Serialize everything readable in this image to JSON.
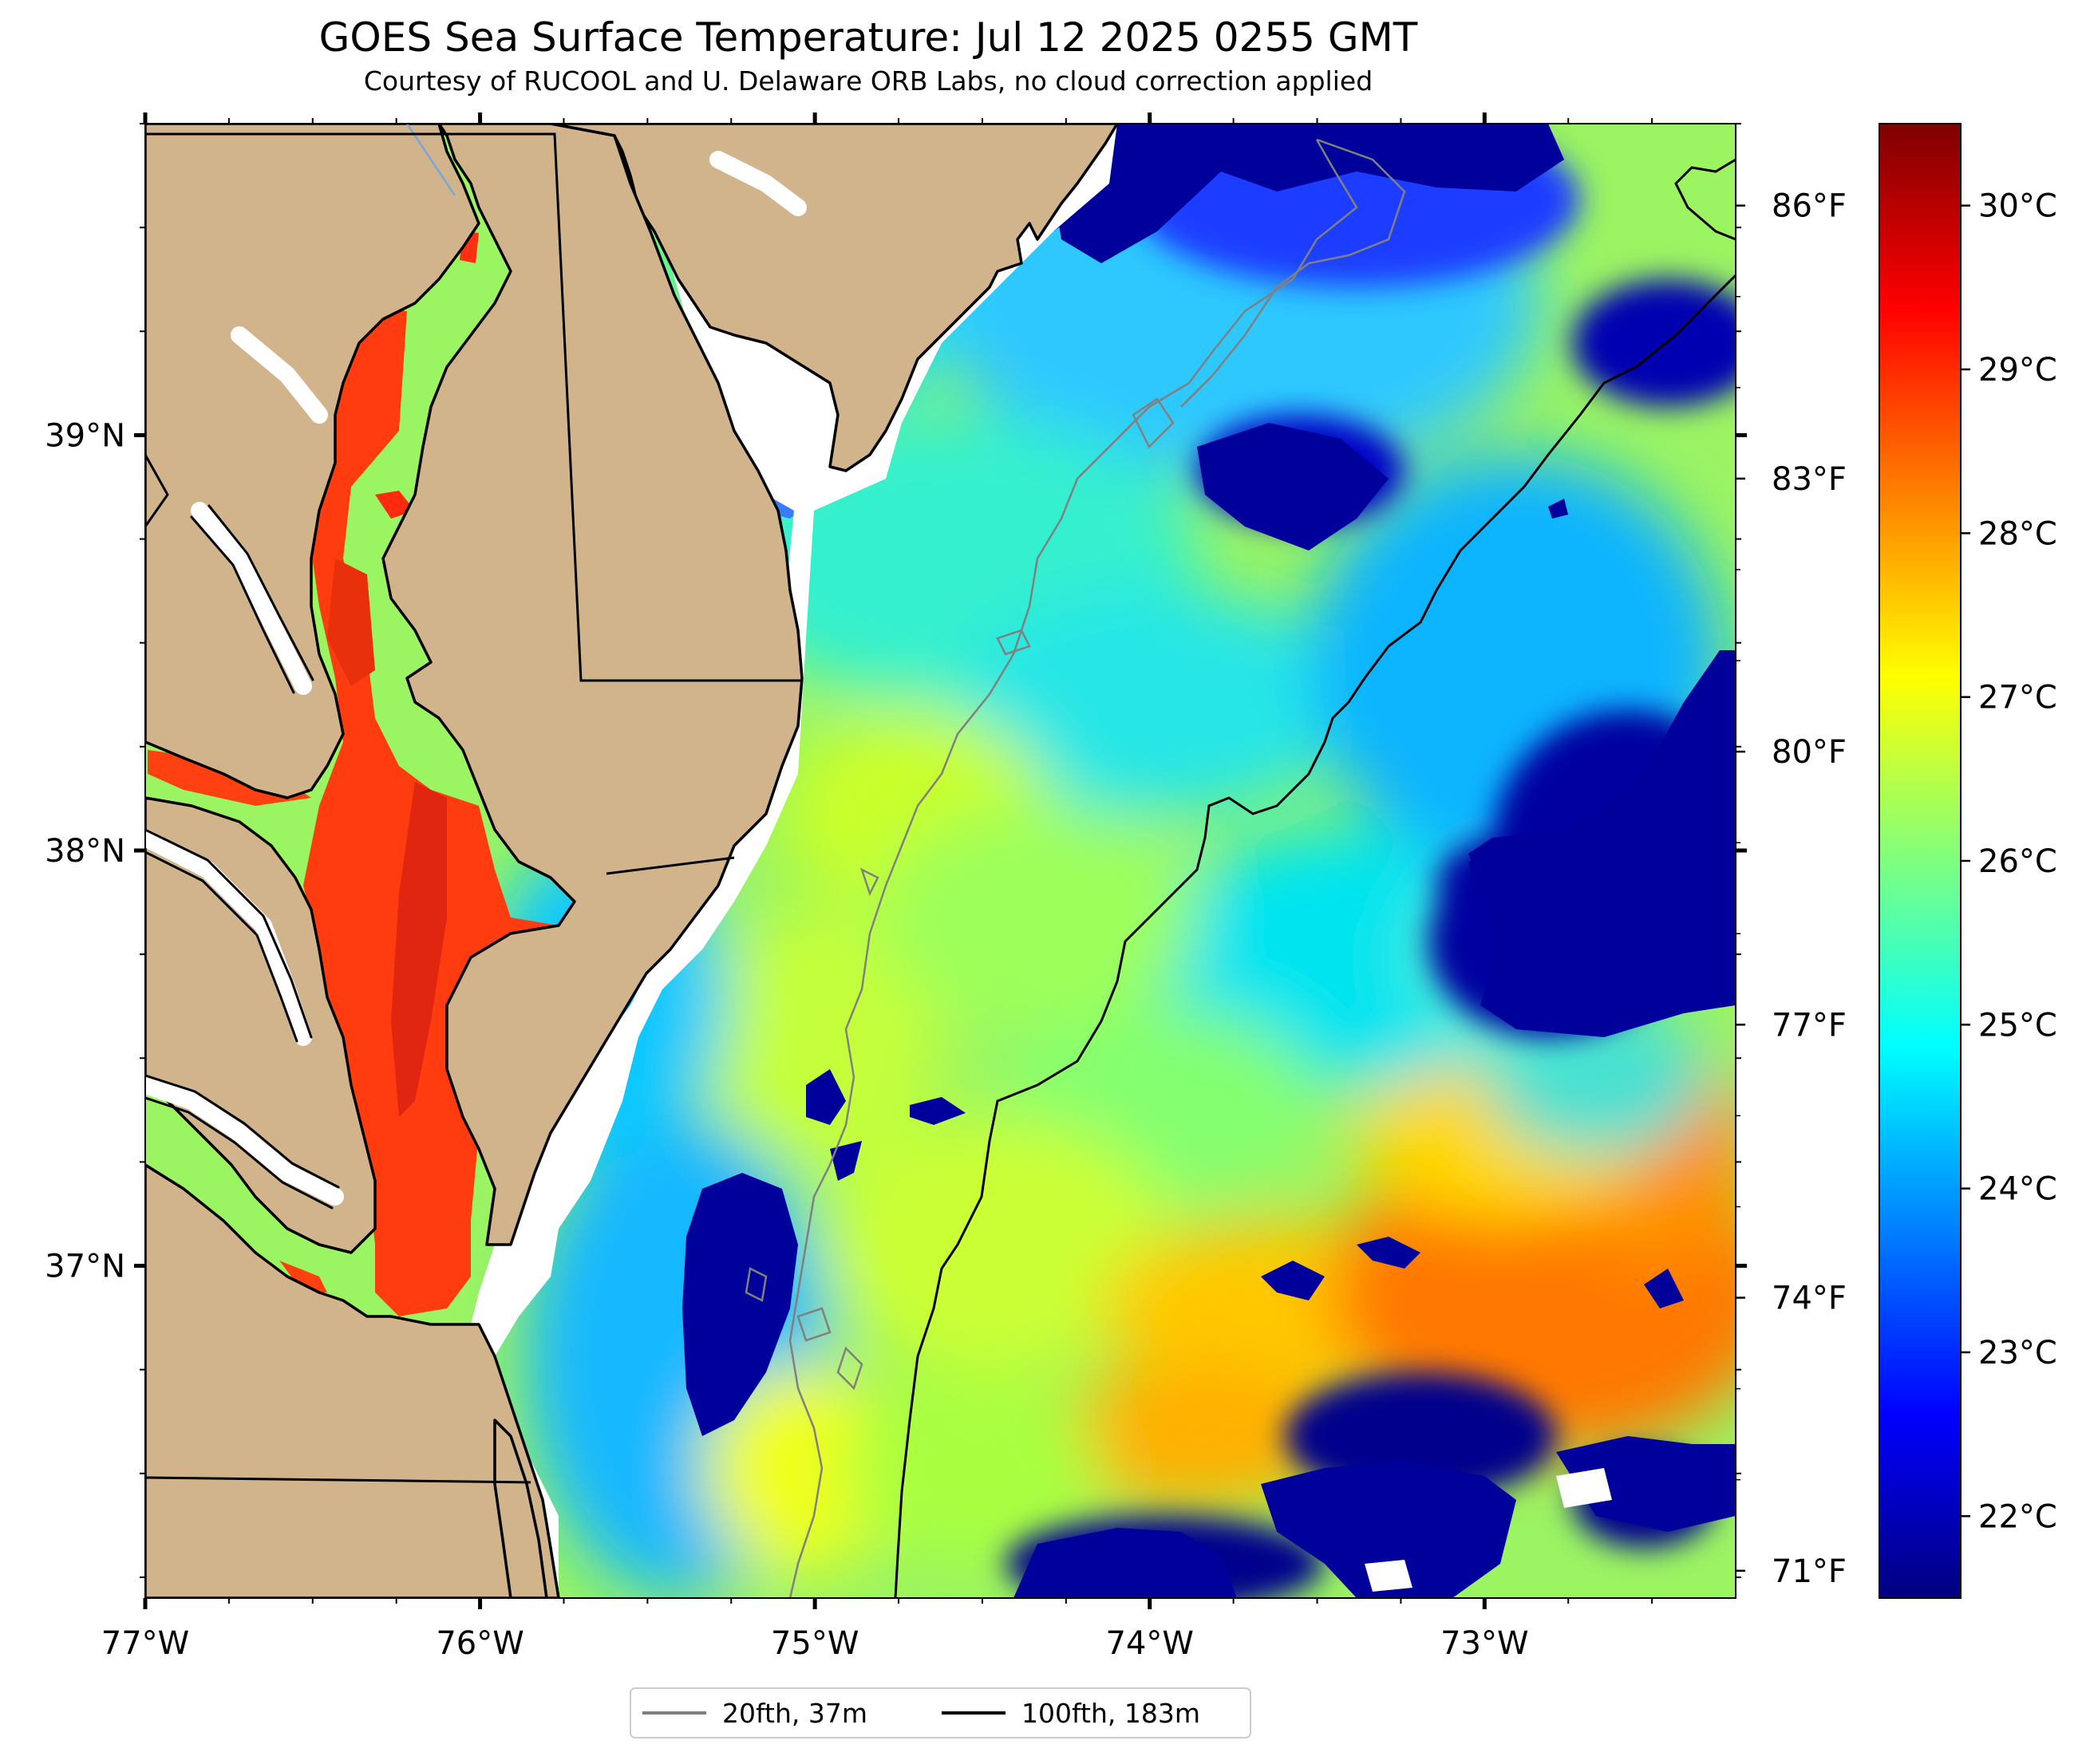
{
  "title": "GOES Sea Surface Temperature: Jul 12 2025 0255 GMT",
  "subtitle": "Courtesy of RUCOOL and U. Delaware ORB Labs, no cloud correction applied",
  "colors": {
    "land": "#d2b48c",
    "land_outline": "#000000",
    "coastal_fringe": "#ffffff",
    "contour_20fth": "#808080",
    "contour_100fth": "#000000",
    "river": "#7aa7d6"
  },
  "axes": {
    "x_ticks": [
      {
        "value": -77,
        "label": "77°W"
      },
      {
        "value": -76,
        "label": "76°W"
      },
      {
        "value": -75,
        "label": "75°W"
      },
      {
        "value": -74,
        "label": "74°W"
      },
      {
        "value": -73,
        "label": "73°W"
      }
    ],
    "y_ticks": [
      {
        "value": 39,
        "label": "39°N"
      },
      {
        "value": 38,
        "label": "38°N"
      },
      {
        "value": 37,
        "label": "37°N"
      }
    ],
    "lon_range": [
      -77.0,
      -72.25
    ],
    "lat_range": [
      36.2,
      39.75
    ]
  },
  "colorbar": {
    "colormap": "jet",
    "celsius_range": [
      21.5,
      30.5
    ],
    "celsius_ticks": [
      {
        "value": 22,
        "label": "22°C"
      },
      {
        "value": 23,
        "label": "23°C"
      },
      {
        "value": 24,
        "label": "24°C"
      },
      {
        "value": 25,
        "label": "25°C"
      },
      {
        "value": 26,
        "label": "26°C"
      },
      {
        "value": 27,
        "label": "27°C"
      },
      {
        "value": 28,
        "label": "28°C"
      },
      {
        "value": 29,
        "label": "29°C"
      },
      {
        "value": 30,
        "label": "30°C"
      }
    ],
    "fahrenheit_ticks": [
      {
        "value": 71,
        "label": "71°F"
      },
      {
        "value": 74,
        "label": "74°F"
      },
      {
        "value": 77,
        "label": "77°F"
      },
      {
        "value": 80,
        "label": "80°F"
      },
      {
        "value": 83,
        "label": "83°F"
      },
      {
        "value": 86,
        "label": "86°F"
      }
    ]
  },
  "legend": {
    "items": [
      {
        "label": "20fth, 37m",
        "color": "#808080"
      },
      {
        "label": "100fth, 183m",
        "color": "#000000"
      }
    ]
  }
}
